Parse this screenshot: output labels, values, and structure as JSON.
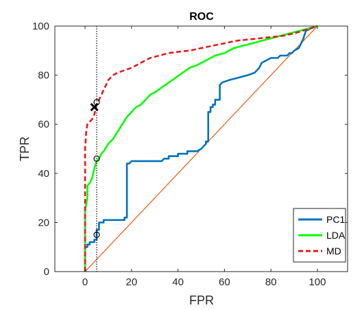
{
  "chart_data": {
    "type": "line",
    "title": "ROC",
    "xlabel": "FPR",
    "ylabel": "TPR",
    "xlim": [
      -13,
      113
    ],
    "ylim": [
      0,
      100
    ],
    "xticks": [
      0,
      20,
      40,
      60,
      80,
      100
    ],
    "yticks": [
      0,
      20,
      40,
      60,
      80,
      100
    ],
    "grid": false,
    "legend_position": "bottom-right",
    "series": [
      {
        "name": "PC1",
        "color": "#0072bd",
        "dash": "solid",
        "points": [
          [
            0,
            0
          ],
          [
            0,
            10
          ],
          [
            1,
            10
          ],
          [
            1,
            11
          ],
          [
            2,
            11
          ],
          [
            2,
            12
          ],
          [
            4,
            12
          ],
          [
            4,
            13
          ],
          [
            5,
            13
          ],
          [
            5,
            15
          ],
          [
            5,
            17
          ],
          [
            6,
            17
          ],
          [
            6,
            20
          ],
          [
            8,
            20
          ],
          [
            8,
            21
          ],
          [
            17,
            21
          ],
          [
            17,
            22
          ],
          [
            18,
            22
          ],
          [
            18,
            44
          ],
          [
            19,
            44
          ],
          [
            20,
            45
          ],
          [
            33,
            45
          ],
          [
            34,
            46
          ],
          [
            36,
            46
          ],
          [
            36,
            47
          ],
          [
            40,
            47
          ],
          [
            40,
            48
          ],
          [
            44,
            48
          ],
          [
            44,
            49
          ],
          [
            48,
            49
          ],
          [
            50,
            50
          ],
          [
            51,
            51
          ],
          [
            52,
            52
          ],
          [
            52,
            53
          ],
          [
            53,
            53
          ],
          [
            53,
            65
          ],
          [
            54,
            65
          ],
          [
            54,
            67
          ],
          [
            55,
            67
          ],
          [
            55,
            68
          ],
          [
            56,
            68
          ],
          [
            56,
            70
          ],
          [
            58,
            70
          ],
          [
            58,
            76
          ],
          [
            59,
            77
          ],
          [
            62,
            78
          ],
          [
            66,
            79
          ],
          [
            70,
            80
          ],
          [
            73,
            81
          ],
          [
            74,
            82
          ],
          [
            75,
            83
          ],
          [
            76,
            85
          ],
          [
            78,
            86
          ],
          [
            80,
            87
          ],
          [
            83,
            87
          ],
          [
            84,
            88
          ],
          [
            87,
            88
          ],
          [
            88,
            89
          ],
          [
            89,
            89
          ],
          [
            90,
            90
          ],
          [
            92,
            91
          ],
          [
            93,
            93
          ],
          [
            94,
            95
          ],
          [
            95,
            98
          ],
          [
            97,
            99
          ],
          [
            100,
            100
          ]
        ]
      },
      {
        "name": "LDA",
        "color": "#00ff00",
        "dash": "solid",
        "points": [
          [
            0,
            0
          ],
          [
            0,
            25
          ],
          [
            1,
            30
          ],
          [
            1,
            35
          ],
          [
            2,
            36
          ],
          [
            3,
            38
          ],
          [
            4,
            42
          ],
          [
            5,
            45
          ],
          [
            6,
            46
          ],
          [
            7,
            48
          ],
          [
            8,
            49
          ],
          [
            10,
            52
          ],
          [
            12,
            54
          ],
          [
            14,
            57
          ],
          [
            16,
            60
          ],
          [
            18,
            63
          ],
          [
            20,
            65
          ],
          [
            22,
            67
          ],
          [
            24,
            68
          ],
          [
            26,
            70
          ],
          [
            28,
            72
          ],
          [
            30,
            73
          ],
          [
            33,
            75
          ],
          [
            36,
            77
          ],
          [
            39,
            79
          ],
          [
            42,
            81
          ],
          [
            45,
            83
          ],
          [
            48,
            84
          ],
          [
            52,
            86
          ],
          [
            56,
            88
          ],
          [
            60,
            89
          ],
          [
            64,
            91
          ],
          [
            68,
            92
          ],
          [
            72,
            93
          ],
          [
            76,
            94
          ],
          [
            80,
            95
          ],
          [
            84,
            96
          ],
          [
            88,
            97
          ],
          [
            92,
            98
          ],
          [
            96,
            99
          ],
          [
            100,
            100
          ]
        ]
      },
      {
        "name": "MD",
        "color": "#e8191a",
        "dash": "dashed",
        "points": [
          [
            0,
            0
          ],
          [
            0,
            50
          ],
          [
            0.5,
            57
          ],
          [
            1,
            60
          ],
          [
            2,
            61
          ],
          [
            3,
            62
          ],
          [
            4,
            64
          ],
          [
            5,
            68
          ],
          [
            6,
            70
          ],
          [
            7,
            72
          ],
          [
            8,
            74
          ],
          [
            9,
            76
          ],
          [
            10,
            78
          ],
          [
            12,
            80
          ],
          [
            14,
            81
          ],
          [
            17,
            82
          ],
          [
            20,
            83
          ],
          [
            24,
            85
          ],
          [
            28,
            87
          ],
          [
            32,
            88
          ],
          [
            36,
            89
          ],
          [
            40,
            89.5
          ],
          [
            45,
            90
          ],
          [
            50,
            91
          ],
          [
            55,
            92
          ],
          [
            60,
            93
          ],
          [
            65,
            94
          ],
          [
            70,
            94.5
          ],
          [
            75,
            95
          ],
          [
            80,
            95.5
          ],
          [
            85,
            96
          ],
          [
            90,
            97
          ],
          [
            95,
            98.5
          ],
          [
            100,
            100
          ]
        ]
      },
      {
        "name": "",
        "color": "#e8641c",
        "dash": "solid",
        "points": [
          [
            0,
            0
          ],
          [
            100,
            100
          ]
        ]
      }
    ],
    "threshold_line_x": 5,
    "markers": [
      {
        "shape": "circle",
        "x": 5,
        "y": 15
      },
      {
        "shape": "circle",
        "x": 5,
        "y": 46
      },
      {
        "shape": "circle",
        "x": 5,
        "y": 69
      },
      {
        "shape": "cross",
        "x": 4,
        "y": 67
      }
    ]
  }
}
